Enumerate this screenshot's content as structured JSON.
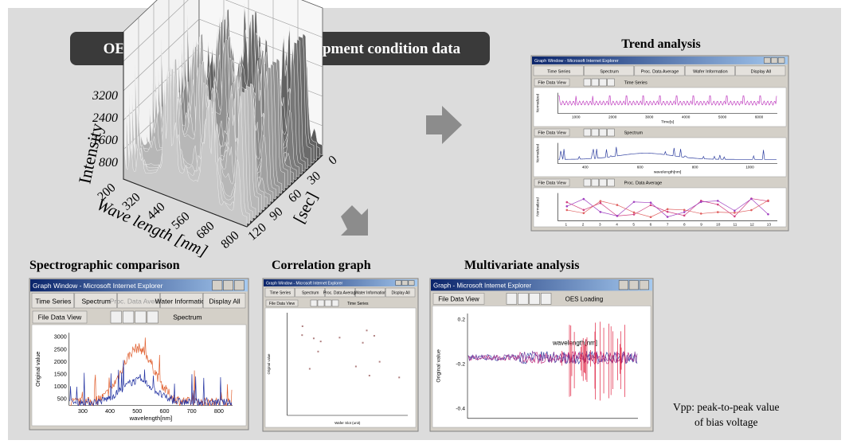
{
  "header": {
    "oes_label": "OES data",
    "equipment_label": "Equipment condition data"
  },
  "plot3d": {
    "y_label": "Intensity",
    "y_ticks": [
      "3200",
      "2400",
      "1600",
      "800"
    ],
    "x_label": "Wave length [nm]",
    "x_ticks": [
      "200",
      "320",
      "440",
      "560",
      "680",
      "800"
    ],
    "z_label": "[sec]",
    "z_ticks": [
      "0",
      "30",
      "60",
      "90",
      "120"
    ]
  },
  "panels": [
    {
      "title": "Trend analysis",
      "window_title": "Graph Window - Microsoft Internet Explorer",
      "tabs": [
        "Time Series",
        "Spectrum",
        "Proc. Data Average",
        "Wafer Information",
        "Display All"
      ],
      "plots": [
        {
          "button": "File Data View",
          "subtitle": "Time Series",
          "x_ticks": [
            "1000",
            "2000",
            "3000",
            "4000",
            "5000",
            "6000"
          ],
          "x_label": "Time[s]",
          "y_label": "Normalized"
        },
        {
          "button": "File Data View",
          "subtitle": "Spectrum",
          "x_ticks": [
            "400",
            "600",
            "800",
            "1000"
          ],
          "x_label": "wavelength[nm]",
          "y_label": "Normalized"
        },
        {
          "button": "File Data View",
          "subtitle": "Proc. Data Average",
          "x_ticks": [
            "1",
            "2",
            "3",
            "4",
            "5",
            "6",
            "7",
            "8",
            "9",
            "10",
            "11",
            "12",
            "13"
          ],
          "y_label": "Normalized"
        }
      ]
    },
    {
      "title": "Spectrographic comparison",
      "window_title": "Graph Window - Microsoft Internet Explorer",
      "tabs": [
        "Time Series",
        "Spectrum",
        "Proc. Data Average",
        "Water Information",
        "Display All"
      ],
      "plots": [
        {
          "button": "File Data View",
          "subtitle": "Spectrum",
          "x_ticks": [
            "300",
            "400",
            "500",
            "600",
            "700",
            "800"
          ],
          "x_label": "wavelength[nm]",
          "y_ticks": [
            "3000",
            "2500",
            "2000",
            "1500",
            "1000",
            "500"
          ],
          "y_label": "Original value"
        }
      ]
    },
    {
      "title": "Correlation graph",
      "window_title": "Graph Window - Microsoft Internet Explorer",
      "tabs": [
        "Time Series",
        "Spectrum",
        "Proc. Data Average",
        "Water Information",
        "Display All"
      ],
      "plots": [
        {
          "button": "File Data View",
          "subtitle": "Time Series",
          "x_label": "Wafer Slot (unit)",
          "y_label": "Original value"
        }
      ]
    },
    {
      "title": "Multivariate analysis",
      "window_title": "Graph - Microsoft Internet Explorer",
      "tabs": [],
      "plots": [
        {
          "button": "File Data View",
          "subtitle": "OES Loading",
          "annotation": "wavelength[nm]",
          "y_ticks": [
            "0.2",
            "-0.2",
            "-0.4"
          ],
          "y_label": "Original value"
        }
      ]
    }
  ],
  "note": [
    "Vpp: peak-to-peak value",
    "of bias voltage"
  ]
}
